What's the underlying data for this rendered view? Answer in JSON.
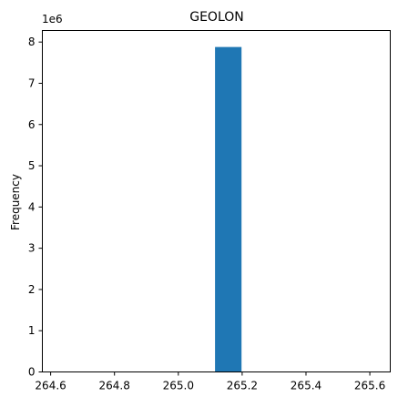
{
  "chart_data": {
    "type": "bar",
    "title": "GEOLON",
    "xlabel": "",
    "ylabel": "Frequency",
    "y_scale_label": "1e6",
    "x_ticks": [
      264.6,
      264.8,
      265.0,
      265.2,
      265.4,
      265.6
    ],
    "x_tick_labels": [
      "264.6",
      "264.8",
      "265.0",
      "265.2",
      "265.4",
      "265.6"
    ],
    "y_ticks": [
      0,
      1,
      2,
      3,
      4,
      5,
      6,
      7,
      8
    ],
    "y_tick_labels": [
      "0",
      "1",
      "2",
      "3",
      "4",
      "5",
      "6",
      "7",
      "8"
    ],
    "xlim": [
      264.574,
      265.664
    ],
    "ylim": [
      0,
      8.28
    ],
    "grid": false,
    "series": [
      {
        "bins": [
          [
            265.115,
            265.198
          ]
        ],
        "values": [
          7.88
        ],
        "color": "#1f77b4"
      }
    ]
  }
}
